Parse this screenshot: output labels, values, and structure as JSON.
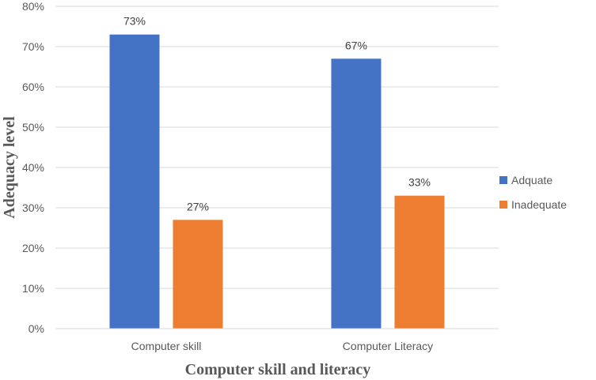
{
  "chart_data": {
    "type": "bar",
    "categories": [
      "Computer skill",
      "Computer Literacy"
    ],
    "series": [
      {
        "name": "Adquate",
        "values": [
          73,
          67
        ],
        "color": "#4472c4"
      },
      {
        "name": "Inadequate",
        "values": [
          27,
          33
        ],
        "color": "#ed7d31"
      }
    ],
    "data_labels": [
      [
        "73%",
        "67%"
      ],
      [
        "27%",
        "33%"
      ]
    ],
    "xlabel": "Computer skill and literacy",
    "ylabel": "Adequacy level",
    "ylim": [
      0,
      80
    ],
    "y_ticks": [
      "0%",
      "10%",
      "20%",
      "30%",
      "40%",
      "50%",
      "60%",
      "70%",
      "80%"
    ],
    "grid": true,
    "legend_position": "right"
  }
}
